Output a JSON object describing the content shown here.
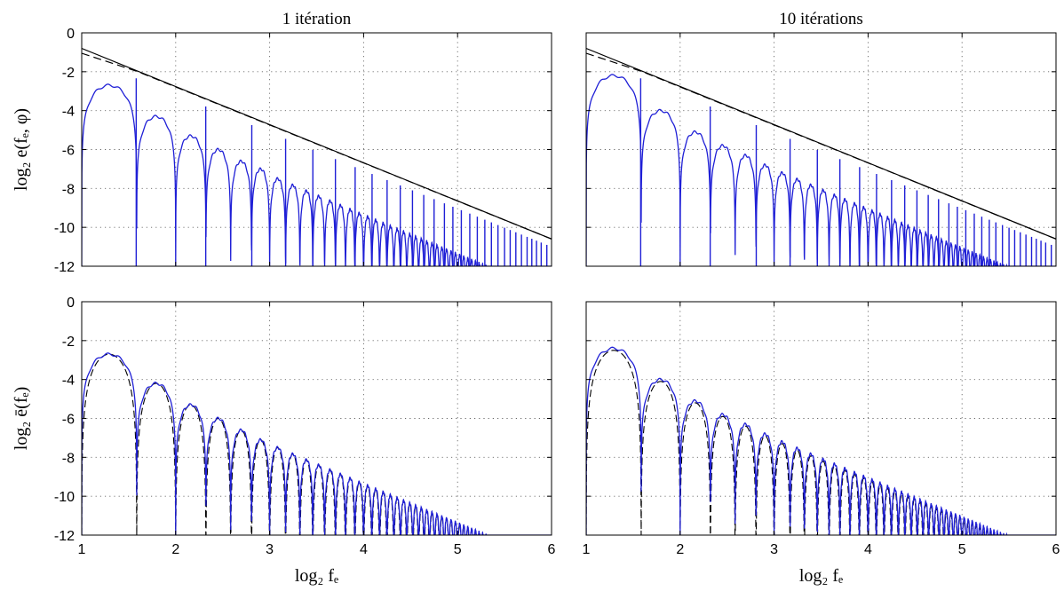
{
  "chart_data": [
    {
      "type": "line",
      "title": "1 itération",
      "xlabel": "",
      "ylabel": "log₂ e(fₑ, φ)",
      "xlim": [
        1,
        6
      ],
      "ylim": [
        -12,
        0
      ],
      "xticks": [
        1,
        2,
        3,
        4,
        5,
        6
      ],
      "yticks": [
        0,
        -2,
        -4,
        -6,
        -8,
        -10,
        -12
      ],
      "xtick_labels": [],
      "ytick_labels": [
        "0",
        "-2",
        "-4",
        "-6",
        "-8",
        "-10",
        "-12"
      ],
      "grid": true,
      "series": [
        {
          "style": "solid",
          "color": "#000000",
          "x": [
            1,
            6
          ],
          "y": [
            -0.8,
            -10.6
          ]
        },
        {
          "style": "dashed",
          "color": "#000000",
          "x": [
            1,
            1.6,
            6
          ],
          "y": [
            -1.05,
            -2.0,
            -10.6
          ]
        },
        {
          "style": "lobes",
          "color": "#1f1fd6",
          "peaks_at": [
            1.58,
            2.32,
            2.81,
            3.17,
            3.46,
            3.7,
            3.91,
            4.09,
            4.25,
            4.39,
            4.52,
            4.64,
            4.75,
            4.86,
            4.95,
            5.04,
            5.13,
            5.21,
            5.29,
            5.36,
            5.43,
            5.5,
            5.56,
            5.62,
            5.68,
            5.74,
            5.79,
            5.84,
            5.89,
            5.95
          ],
          "lobe_tops": [
            -2.7,
            -4.3,
            -5.3,
            -6.0,
            -6.6,
            -7.0,
            -7.5
          ]
        }
      ]
    },
    {
      "type": "line",
      "title": "10 itérations",
      "xlabel": "",
      "ylabel": "",
      "xlim": [
        1,
        6
      ],
      "ylim": [
        -12,
        0
      ],
      "xticks": [
        1,
        2,
        3,
        4,
        5,
        6
      ],
      "yticks": [
        0,
        -2,
        -4,
        -6,
        -8,
        -10,
        -12
      ],
      "xtick_labels": [],
      "ytick_labels": [],
      "grid": true,
      "series": [
        {
          "style": "solid",
          "color": "#000000",
          "x": [
            1,
            6
          ],
          "y": [
            -0.8,
            -10.6
          ]
        },
        {
          "style": "dashed",
          "color": "#000000",
          "x": [
            1,
            1.6,
            6
          ],
          "y": [
            -1.05,
            -2.0,
            -10.6
          ]
        },
        {
          "style": "lobes",
          "color": "#1f1fd6",
          "lobe_tops": [
            -2.2,
            -4.0,
            -5.1,
            -5.8,
            -6.3,
            -6.8,
            -7.2
          ]
        }
      ]
    },
    {
      "type": "line",
      "title": "",
      "xlabel": "log₂ fₑ",
      "ylabel": "log₂ ē(fₑ)",
      "xlim": [
        1,
        6
      ],
      "ylim": [
        -12,
        0
      ],
      "xticks": [
        1,
        2,
        3,
        4,
        5,
        6
      ],
      "yticks": [
        0,
        -2,
        -4,
        -6,
        -8,
        -10,
        -12
      ],
      "xtick_labels": [
        "1",
        "2",
        "3",
        "4",
        "5",
        "6"
      ],
      "ytick_labels": [
        "0",
        "-2",
        "-4",
        "-6",
        "-8",
        "-10",
        "-12"
      ],
      "grid": true,
      "series": [
        {
          "style": "dashed",
          "color": "#000000",
          "lobe_tops": [
            -2.7,
            -4.2,
            -5.3,
            -6.0,
            -6.6,
            -7.1,
            -7.5
          ]
        },
        {
          "style": "solid",
          "color": "#1f1fd6",
          "lobe_tops": [
            -2.7,
            -4.2,
            -5.3,
            -6.0,
            -6.6,
            -7.1,
            -7.5
          ]
        }
      ]
    },
    {
      "type": "line",
      "title": "",
      "xlabel": "log₂ fₑ",
      "ylabel": "",
      "xlim": [
        1,
        6
      ],
      "ylim": [
        -12,
        0
      ],
      "xticks": [
        1,
        2,
        3,
        4,
        5,
        6
      ],
      "yticks": [
        0,
        -2,
        -4,
        -6,
        -8,
        -10,
        -12
      ],
      "xtick_labels": [
        "1",
        "2",
        "3",
        "4",
        "5",
        "6"
      ],
      "ytick_labels": [],
      "grid": true,
      "series": [
        {
          "style": "dashed",
          "color": "#000000",
          "lobe_tops": [
            -2.5,
            -4.1,
            -5.2,
            -5.9,
            -6.4,
            -6.9,
            -7.3
          ]
        },
        {
          "style": "solid",
          "color": "#1f1fd6",
          "lobe_tops": [
            -2.4,
            -4.0,
            -5.1,
            -5.8,
            -6.3,
            -6.8,
            -7.2
          ]
        }
      ]
    }
  ]
}
